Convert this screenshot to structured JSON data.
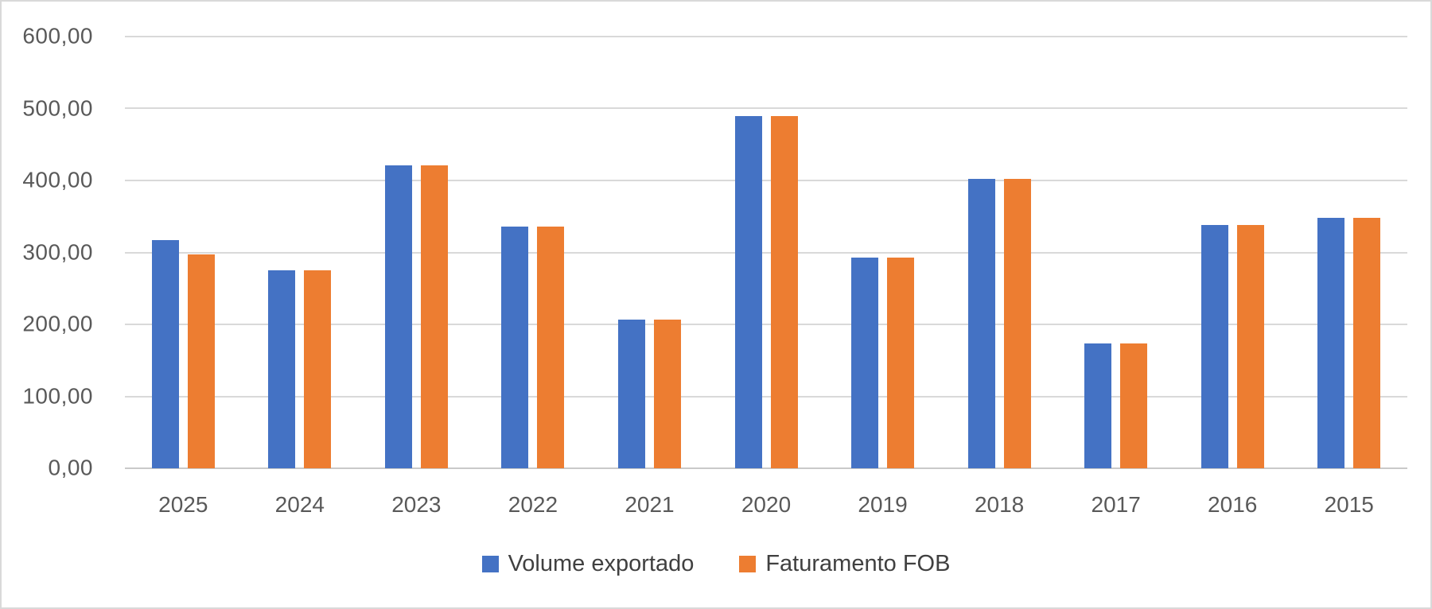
{
  "chart_data": {
    "type": "bar",
    "title": "",
    "categories": [
      "2025",
      "2024",
      "2023",
      "2022",
      "2021",
      "2020",
      "2019",
      "2018",
      "2017",
      "2016",
      "2015"
    ],
    "series": [
      {
        "name": "Volume exportado",
        "color": "#4472C4",
        "values": [
          317,
          275,
          421,
          336,
          207,
          489,
          293,
          402,
          174,
          338,
          348
        ]
      },
      {
        "name": "Faturamento FOB",
        "color": "#ED7D31",
        "values": [
          297,
          275,
          421,
          336,
          207,
          489,
          293,
          402,
          174,
          338,
          348
        ]
      }
    ],
    "ylim": [
      0,
      600
    ],
    "yticks": [
      {
        "value": 600,
        "label": "600,00"
      },
      {
        "value": 500,
        "label": "500,00"
      },
      {
        "value": 400,
        "label": "400,00"
      },
      {
        "value": 300,
        "label": "300,00"
      },
      {
        "value": 200,
        "label": "200,00"
      },
      {
        "value": 100,
        "label": "100,00"
      },
      {
        "value": 0,
        "label": "0,00"
      }
    ],
    "grid": true,
    "legend_position": "bottom",
    "axis_text_color": "#595959",
    "gridline_color": "#d9d9d9"
  }
}
